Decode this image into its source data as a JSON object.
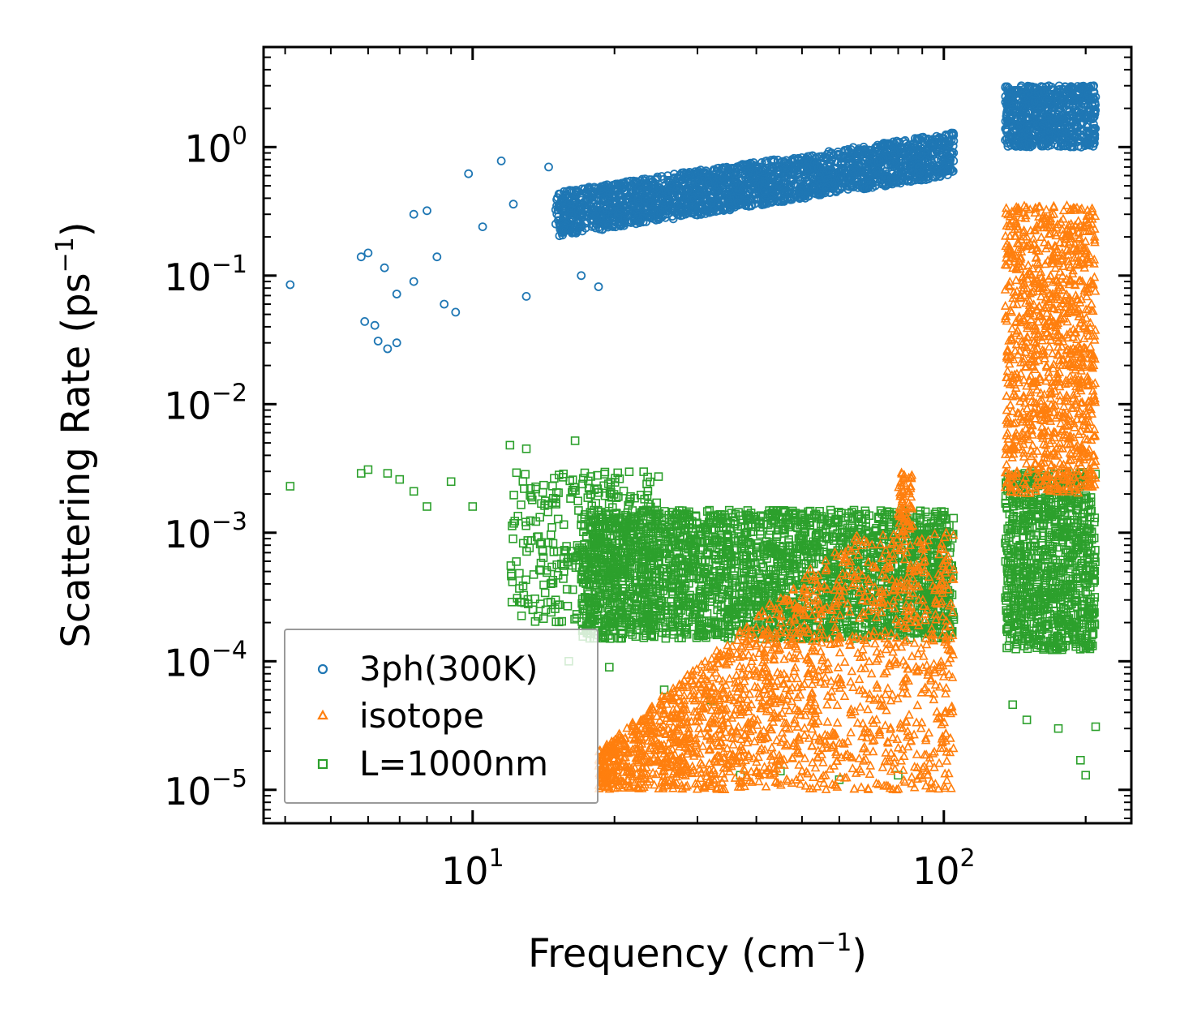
{
  "chart_data": {
    "type": "scatter",
    "xscale": "log",
    "yscale": "log",
    "xlim": [
      3.6,
      250
    ],
    "ylim": [
      5.5e-06,
      6.0
    ],
    "xlabel": {
      "base": "Frequency (cm",
      "sup": "−1",
      "end": ")"
    },
    "ylabel": {
      "base": "Scattering Rate (ps",
      "sup": "−1",
      "end": ")"
    },
    "xticks": [
      {
        "value": 10,
        "base": "10",
        "exp": "1"
      },
      {
        "value": 100,
        "base": "10",
        "exp": "2"
      }
    ],
    "yticks": [
      {
        "value": 1e-05,
        "base": "10",
        "exp": "−5"
      },
      {
        "value": 0.0001,
        "base": "10",
        "exp": "−4"
      },
      {
        "value": 0.001,
        "base": "10",
        "exp": "−3"
      },
      {
        "value": 0.01,
        "base": "10",
        "exp": "−2"
      },
      {
        "value": 0.1,
        "base": "10",
        "exp": "−1"
      },
      {
        "value": 1,
        "base": "10",
        "exp": "0"
      }
    ],
    "legend_position": "lower-left",
    "series": [
      {
        "name": "3ph(300K)",
        "marker": "circle",
        "color": "#1f77b4",
        "sample_points": [
          [
            4.1,
            0.085
          ],
          [
            5.8,
            0.14
          ],
          [
            6.0,
            0.15
          ],
          [
            6.5,
            0.115
          ],
          [
            5.9,
            0.044
          ],
          [
            6.2,
            0.041
          ],
          [
            6.3,
            0.031
          ],
          [
            6.6,
            0.027
          ],
          [
            6.9,
            0.03
          ],
          [
            6.9,
            0.072
          ],
          [
            7.5,
            0.09
          ],
          [
            7.5,
            0.3
          ],
          [
            8.0,
            0.32
          ],
          [
            8.4,
            0.14
          ],
          [
            8.7,
            0.06
          ],
          [
            9.2,
            0.052
          ],
          [
            9.8,
            0.62
          ],
          [
            10.5,
            0.24
          ],
          [
            11.5,
            0.78
          ],
          [
            12.2,
            0.36
          ],
          [
            13.0,
            0.069
          ],
          [
            14.5,
            0.7
          ],
          [
            16.0,
            0.45
          ],
          [
            17.0,
            0.1
          ],
          [
            18.5,
            0.082
          ]
        ],
        "trend_bands": [
          {
            "x_range": [
              15,
              105
            ],
            "y_low": [
              0.2,
              0.6
            ],
            "y_high": [
              0.45,
              1.3
            ]
          },
          {
            "x_range": [
              135,
              210
            ],
            "y_low": [
              1.0,
              1.0
            ],
            "y_high": [
              3.0,
              3.0
            ]
          }
        ]
      },
      {
        "name": "isotope",
        "marker": "triangle",
        "color": "#ff7f0e",
        "clusters": [
          {
            "x_range": [
              18.5,
              105
            ],
            "y_range": [
              1e-05,
              0.001
            ]
          },
          {
            "x_range": [
              80,
              86
            ],
            "y_range": [
              0.001,
              0.003
            ]
          },
          {
            "x_range": [
              135,
              210
            ],
            "y_range": [
              0.002,
              0.35
            ]
          }
        ]
      },
      {
        "name": "L=1000nm",
        "marker": "square",
        "color": "#2ca02c",
        "sample_points": [
          [
            4.1,
            0.0023
          ],
          [
            5.8,
            0.0029
          ],
          [
            6.0,
            0.0031
          ],
          [
            6.6,
            0.0029
          ],
          [
            7.0,
            0.0026
          ],
          [
            7.5,
            0.0021
          ],
          [
            8.0,
            0.0016
          ],
          [
            9.0,
            0.0025
          ],
          [
            10.0,
            0.0016
          ],
          [
            12.0,
            0.0048
          ],
          [
            13.0,
            0.0045
          ],
          [
            16.5,
            0.0052
          ],
          [
            15.0,
            0.0003
          ],
          [
            16.0,
            0.0001
          ],
          [
            18.5,
            0.00016
          ],
          [
            19.5,
            9e-05
          ],
          [
            25.5,
            6e-05
          ],
          [
            32.0,
            5e-05
          ],
          [
            37.0,
            1.3e-05
          ],
          [
            45.0,
            1.4e-05
          ],
          [
            60.0,
            1.2e-05
          ],
          [
            80.0,
            1.3e-05
          ],
          [
            140.0,
            4.6e-05
          ],
          [
            150.0,
            3.5e-05
          ],
          [
            175.0,
            3e-05
          ],
          [
            195.0,
            1.7e-05
          ],
          [
            200.0,
            1.3e-05
          ],
          [
            210.0,
            3.1e-05
          ]
        ],
        "clusters": [
          {
            "x_range": [
              12,
              25
            ],
            "y_range": [
              0.0002,
              0.003
            ]
          },
          {
            "x_range": [
              17,
              105
            ],
            "y_range": [
              0.00015,
              0.0015
            ]
          },
          {
            "x_range": [
              135,
              210
            ],
            "y_range": [
              0.00012,
              0.003
            ]
          }
        ]
      }
    ]
  }
}
